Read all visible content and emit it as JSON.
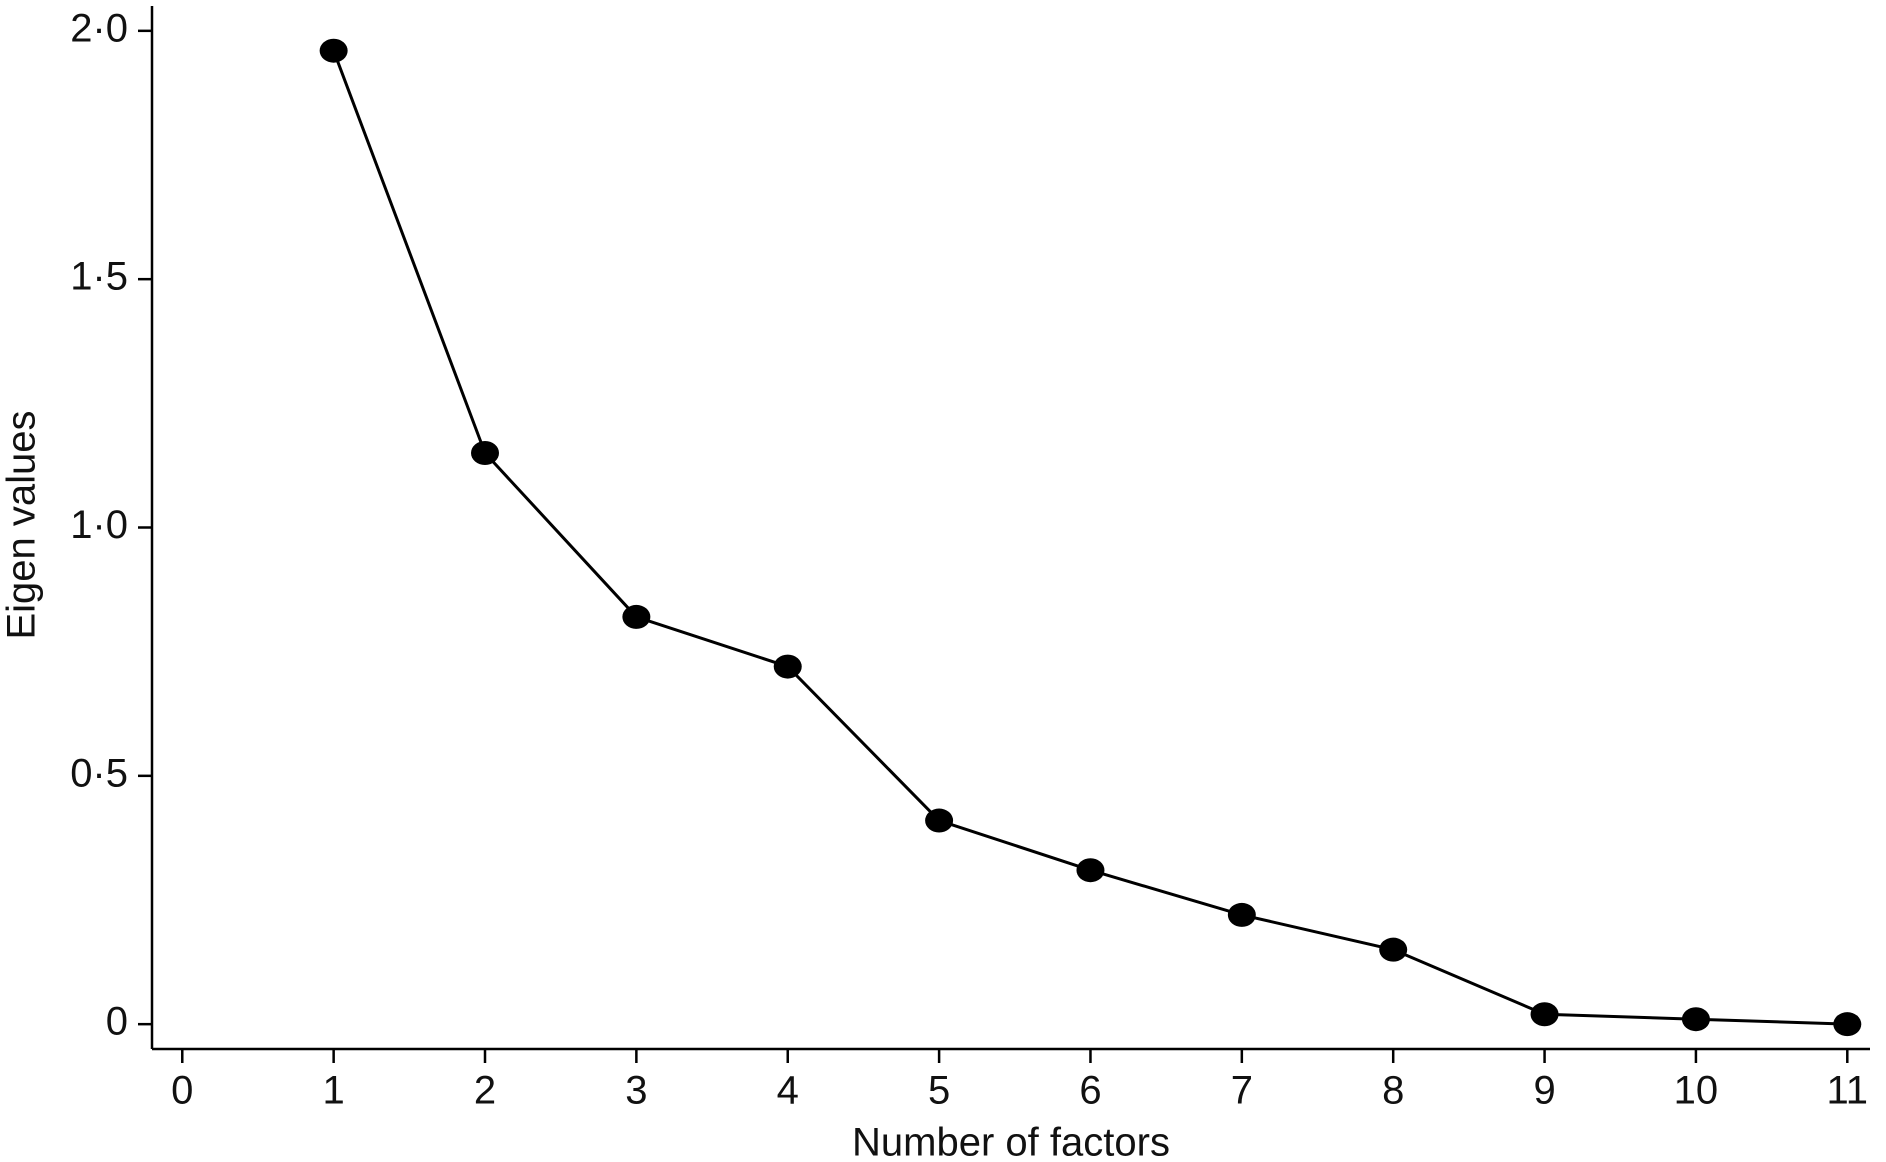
{
  "chart_data": {
    "type": "line",
    "x_label": "Number of factors",
    "y_label": "Eigen values",
    "x": [
      1,
      2,
      3,
      4,
      5,
      6,
      7,
      8,
      9,
      10,
      11
    ],
    "values": [
      1.96,
      1.15,
      0.82,
      0.72,
      0.41,
      0.31,
      0.22,
      0.15,
      0.02,
      0.01,
      0
    ],
    "color": "#000000",
    "xlim": [
      -0.2,
      11.15
    ],
    "ylim": [
      -0.05,
      2.05
    ],
    "xticks": [
      0,
      1,
      2,
      3,
      4,
      5,
      6,
      7,
      8,
      9,
      10,
      11
    ],
    "yticks": [
      0,
      {
        "value": 0.5,
        "label": "0·5"
      },
      {
        "value": 1,
        "label": "1·0"
      },
      {
        "value": 1.5,
        "label": "1·5"
      },
      {
        "value": 2,
        "label": "2·0"
      }
    ],
    "grid": false,
    "markers": true
  }
}
